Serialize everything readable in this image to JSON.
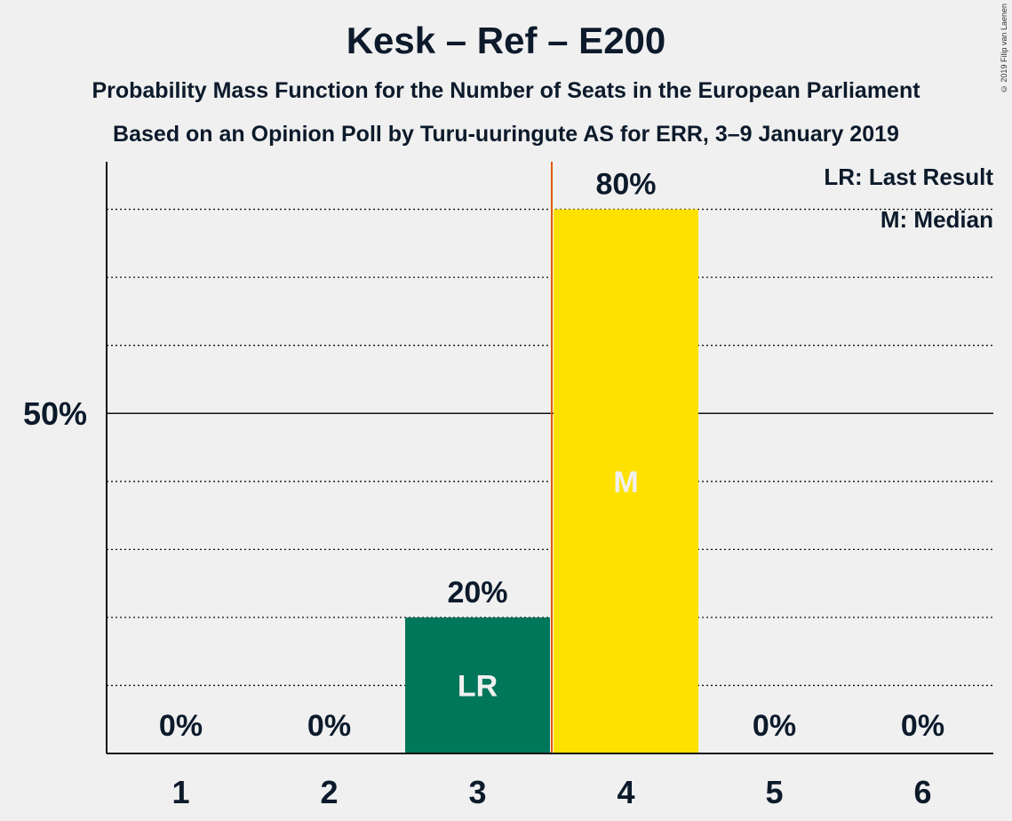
{
  "chart_data": {
    "type": "bar",
    "title": "Kesk – Ref – E200",
    "subtitle1": "Probability Mass Function for the Number of Seats in the European Parliament",
    "subtitle2": "Based on an Opinion Poll by Turu-uuringute AS for ERR, 3–9 January 2019",
    "categories": [
      "1",
      "2",
      "3",
      "4",
      "5",
      "6"
    ],
    "values": [
      0,
      0,
      20,
      80,
      0,
      0
    ],
    "value_labels": [
      "0%",
      "0%",
      "20%",
      "80%",
      "0%",
      "0%"
    ],
    "bar_marks": [
      "",
      "",
      "LR",
      "M",
      "",
      ""
    ],
    "bar_colors": [
      "",
      "",
      "#00765a",
      "#ffe100",
      "",
      ""
    ],
    "bar_mark_colors": [
      "",
      "",
      "#f0f0f0",
      "#f0f0f0",
      "",
      ""
    ],
    "ylim": [
      0,
      87
    ],
    "ytick_value": 50,
    "ytick_label": "50%",
    "minor_grid_step": 10,
    "median_line_after_category": "3",
    "median_line_color": "#e05a00",
    "legend": [
      "LR: Last Result",
      "M: Median"
    ],
    "copyright": "© 2019 Filip van Laenen"
  }
}
